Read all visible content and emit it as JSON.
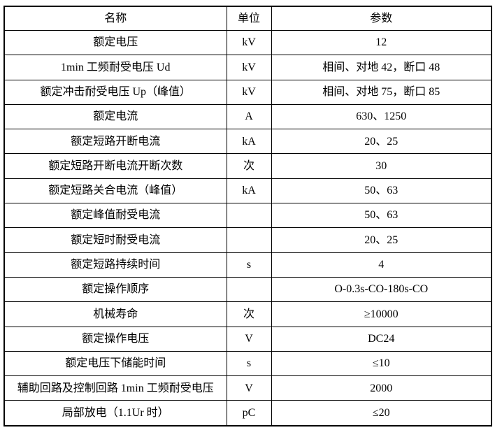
{
  "table": {
    "columns": [
      {
        "key": "name",
        "label": "名称"
      },
      {
        "key": "unit",
        "label": "单位"
      },
      {
        "key": "value",
        "label": "参数"
      }
    ],
    "rows": [
      {
        "name": "额定电压",
        "unit": "kV",
        "value": "12"
      },
      {
        "name": "1min 工频耐受电压 Ud",
        "unit": "kV",
        "value": "相间、对地 42，断口 48"
      },
      {
        "name": "额定冲击耐受电压 Up（峰值）",
        "unit": "kV",
        "value": "相间、对地 75，断口 85"
      },
      {
        "name": "额定电流",
        "unit": "A",
        "value": "630、1250"
      },
      {
        "name": "额定短路开断电流",
        "unit": "kA",
        "value": "20、25"
      },
      {
        "name": "额定短路开断电流开断次数",
        "unit": "次",
        "value": "30"
      },
      {
        "name": "额定短路关合电流（峰值）",
        "unit": "kA",
        "value": "50、63"
      },
      {
        "name": "额定峰值耐受电流",
        "unit": "",
        "value": "50、63"
      },
      {
        "name": "额定短时耐受电流",
        "unit": "",
        "value": "20、25"
      },
      {
        "name": "额定短路持续时间",
        "unit": "s",
        "value": "4"
      },
      {
        "name": "额定操作顺序",
        "unit": "",
        "value": "O-0.3s-CO-180s-CO"
      },
      {
        "name": "机械寿命",
        "unit": "次",
        "value": "≥10000"
      },
      {
        "name": "额定操作电压",
        "unit": "V",
        "value": "DC24"
      },
      {
        "name": "额定电压下储能时间",
        "unit": "s",
        "value": "≤10"
      },
      {
        "name": "辅助回路及控制回路 1min 工频耐受电压",
        "unit": "V",
        "value": "2000"
      },
      {
        "name": "局部放电（1.1Ur 时）",
        "unit": "pC",
        "value": "≤20"
      }
    ],
    "colors": {
      "border": "#000000",
      "text": "#000000",
      "background": "#ffffff"
    }
  }
}
